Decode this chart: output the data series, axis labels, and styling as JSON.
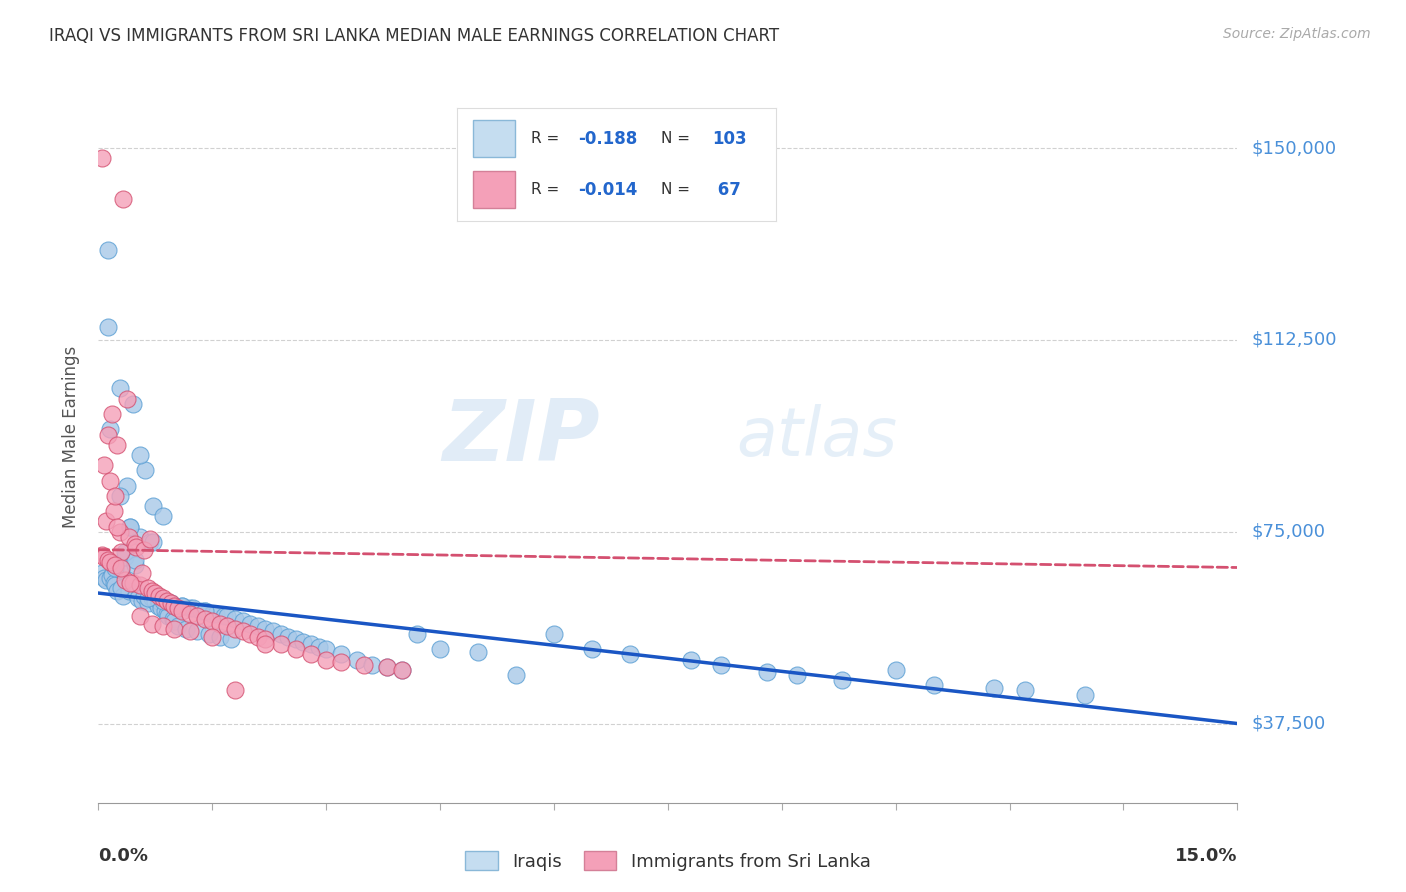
{
  "title": "IRAQI VS IMMIGRANTS FROM SRI LANKA MEDIAN MALE EARNINGS CORRELATION CHART",
  "source": "Source: ZipAtlas.com",
  "ylabel": "Median Male Earnings",
  "xmin": 0.0,
  "xmax": 15.0,
  "ymin": 22000,
  "ymax": 165000,
  "yticks": [
    37500,
    75000,
    112500,
    150000
  ],
  "ytick_labels": [
    "$37,500",
    "$75,000",
    "$112,500",
    "$150,000"
  ],
  "series": [
    {
      "name": "Iraqis",
      "R": -0.188,
      "N": 103,
      "color": "#a8c8e8",
      "edge_color": "#5a9fd4",
      "trend_color": "#1a56c4",
      "trend_style": "solid",
      "trend_x": [
        0,
        15
      ],
      "trend_y": [
        63000,
        37500
      ],
      "points_x": [
        0.05,
        0.08,
        0.1,
        0.12,
        0.15,
        0.18,
        0.2,
        0.22,
        0.25,
        0.28,
        0.3,
        0.32,
        0.35,
        0.38,
        0.4,
        0.42,
        0.45,
        0.48,
        0.5,
        0.52,
        0.55,
        0.58,
        0.6,
        0.62,
        0.65,
        0.68,
        0.7,
        0.72,
        0.75,
        0.78,
        0.8,
        0.82,
        0.85,
        0.88,
        0.9,
        0.92,
        0.95,
        0.98,
        1.0,
        1.05,
        1.1,
        1.15,
        1.2,
        1.25,
        1.3,
        1.35,
        1.4,
        1.45,
        1.5,
        1.55,
        1.6,
        1.65,
        1.7,
        1.75,
        1.8,
        1.9,
        2.0,
        2.1,
        2.2,
        2.3,
        2.4,
        2.5,
        2.6,
        2.7,
        2.8,
        2.9,
        3.0,
        3.2,
        3.4,
        3.6,
        3.8,
        4.0,
        4.2,
        4.5,
        5.0,
        5.5,
        6.0,
        6.5,
        7.0,
        7.8,
        8.2,
        8.8,
        9.2,
        9.8,
        10.5,
        11.0,
        11.8,
        12.2,
        13.0,
        0.12,
        0.28,
        0.15,
        0.35,
        0.22,
        0.42,
        0.3,
        0.55,
        0.48,
        0.65,
        0.72,
        0.85,
        1.1,
        1.4
      ],
      "points_y": [
        67000,
        66000,
        65500,
        130000,
        66000,
        66500,
        65000,
        64500,
        63500,
        103000,
        67500,
        62500,
        70000,
        84000,
        63500,
        76000,
        100000,
        68500,
        63000,
        62000,
        74000,
        61500,
        62500,
        87000,
        61000,
        73000,
        62000,
        80000,
        61500,
        60500,
        61500,
        60000,
        78000,
        59500,
        59000,
        58500,
        61000,
        58000,
        57500,
        56500,
        60500,
        56000,
        60000,
        60000,
        55500,
        59500,
        59500,
        55000,
        59000,
        59000,
        54500,
        58500,
        58500,
        54000,
        58000,
        57500,
        57000,
        56500,
        56000,
        55500,
        55000,
        54500,
        54000,
        53500,
        53000,
        52500,
        52000,
        51000,
        50000,
        49000,
        48500,
        48000,
        55000,
        52000,
        51500,
        47000,
        55000,
        52000,
        51000,
        50000,
        49000,
        47500,
        47000,
        46000,
        48000,
        45000,
        44500,
        44000,
        43000,
        115000,
        82000,
        95000,
        71000,
        68000,
        76000,
        64000,
        90000,
        69500,
        62000,
        73000,
        61500,
        60500,
        59500
      ]
    },
    {
      "name": "Immigrants from Sri Lanka",
      "R": -0.014,
      "N": 67,
      "color": "#f4a0b8",
      "edge_color": "#d45070",
      "trend_color": "#d45070",
      "trend_style": "dashed",
      "trend_x": [
        0,
        15
      ],
      "trend_y": [
        71500,
        68000
      ],
      "points_x": [
        0.05,
        0.08,
        0.1,
        0.12,
        0.15,
        0.18,
        0.2,
        0.22,
        0.25,
        0.28,
        0.3,
        0.35,
        0.38,
        0.4,
        0.45,
        0.48,
        0.5,
        0.55,
        0.58,
        0.6,
        0.65,
        0.68,
        0.7,
        0.75,
        0.8,
        0.85,
        0.9,
        0.95,
        1.0,
        1.05,
        1.1,
        1.2,
        1.3,
        1.4,
        1.5,
        1.6,
        1.7,
        1.8,
        1.9,
        2.0,
        2.1,
        2.2,
        2.4,
        2.6,
        2.8,
        3.0,
        3.2,
        3.5,
        3.8,
        4.0,
        0.05,
        0.08,
        0.12,
        0.15,
        0.22,
        0.3,
        0.42,
        0.55,
        0.7,
        0.85,
        1.0,
        1.2,
        1.5,
        1.8,
        2.2,
        0.32,
        0.25
      ],
      "points_y": [
        148000,
        88000,
        77000,
        94000,
        85000,
        98000,
        79000,
        82000,
        92000,
        75000,
        71000,
        65500,
        101000,
        74000,
        65000,
        72500,
        72000,
        64500,
        67000,
        71500,
        64000,
        73500,
        63500,
        63000,
        62500,
        62000,
        61500,
        61000,
        60500,
        60000,
        59500,
        59000,
        58500,
        58000,
        57500,
        57000,
        56500,
        56000,
        55500,
        55000,
        54500,
        54000,
        53000,
        52000,
        51000,
        50000,
        49500,
        49000,
        48500,
        48000,
        70500,
        70000,
        69500,
        69000,
        68500,
        68000,
        65000,
        58500,
        57000,
        56500,
        56000,
        55500,
        54500,
        44000,
        53000,
        140000,
        76000
      ]
    }
  ],
  "watermark_zip": "ZIP",
  "watermark_atlas": "atlas",
  "legend_box_colors": [
    "#c5ddf0",
    "#f4a0b8"
  ],
  "title_color": "#333333",
  "axis_label_color": "#4a90d9",
  "background_color": "#ffffff",
  "plot_bg_color": "#ffffff"
}
